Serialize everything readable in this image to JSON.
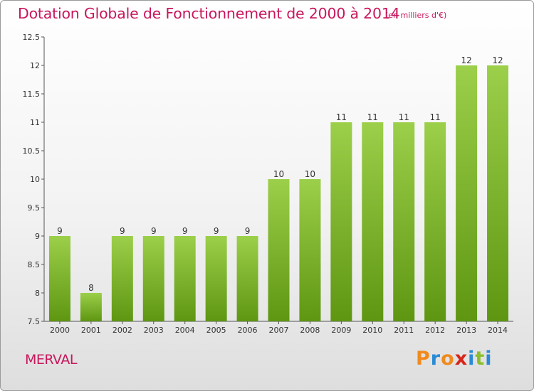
{
  "title": "Dotation Globale de Fonctionnement de 2000 à 2014",
  "subtitle": "(en milliers d'€)",
  "commune": "MERVAL",
  "logo": {
    "text": "Proxiti",
    "letter_colors": [
      "#f08a1e",
      "#2a8ad4",
      "#f08a1e",
      "#d6261a",
      "#2a8ad4",
      "#8bbf2b",
      "#2a8ad4"
    ]
  },
  "colors": {
    "title": "#c8175d",
    "bar_light": "#9ccf4a",
    "bar_dark": "#5e9612"
  },
  "chart_data": {
    "type": "bar",
    "title": "Dotation Globale de Fonctionnement de 2000 à 2014",
    "subtitle": "(en milliers d'€)",
    "categories": [
      "2000",
      "2001",
      "2002",
      "2003",
      "2004",
      "2005",
      "2006",
      "2007",
      "2008",
      "2009",
      "2010",
      "2011",
      "2012",
      "2013",
      "2014"
    ],
    "values": [
      9,
      8,
      9,
      9,
      9,
      9,
      9,
      10,
      10,
      11,
      11,
      11,
      11,
      12,
      12
    ],
    "labels": [
      "9",
      "8",
      "9",
      "9",
      "9",
      "9",
      "9",
      "10",
      "10",
      "11",
      "11",
      "11",
      "11",
      "12",
      "12"
    ],
    "ylim": [
      7.5,
      12.5
    ],
    "yticks": [
      "7.5",
      "8",
      "8.5",
      "9",
      "9.5",
      "10",
      "10.5",
      "11",
      "11.5",
      "12",
      "12.5"
    ],
    "grid": false,
    "legend": "none"
  }
}
